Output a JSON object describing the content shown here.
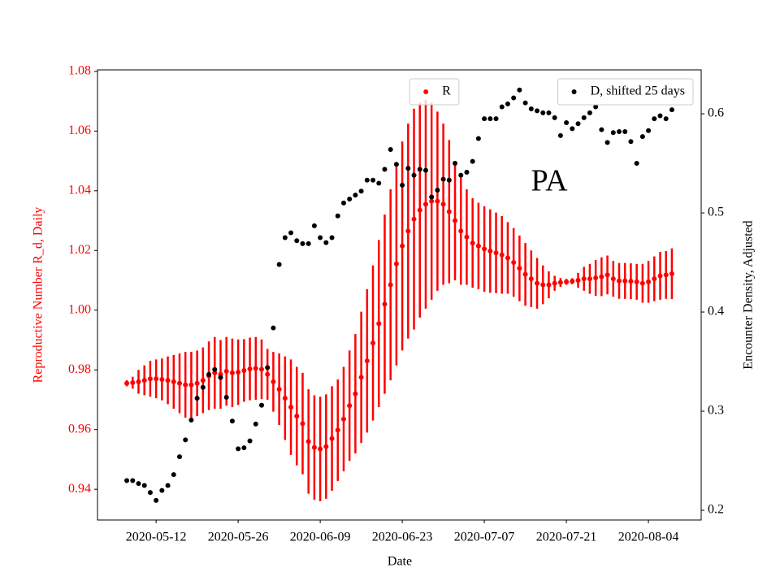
{
  "chart_data": {
    "type": "scatter",
    "x_label": "Date",
    "y_label": "Reproductive Number R_d, Daily",
    "y2_label": "Encounter Density, Adjusted",
    "annotation": "PA",
    "x": [
      "2020-05-07",
      "2020-05-08",
      "2020-05-09",
      "2020-05-10",
      "2020-05-11",
      "2020-05-12",
      "2020-05-13",
      "2020-05-14",
      "2020-05-15",
      "2020-05-16",
      "2020-05-17",
      "2020-05-18",
      "2020-05-19",
      "2020-05-20",
      "2020-05-21",
      "2020-05-22",
      "2020-05-23",
      "2020-05-24",
      "2020-05-25",
      "2020-05-26",
      "2020-05-27",
      "2020-05-28",
      "2020-05-29",
      "2020-05-30",
      "2020-05-31",
      "2020-06-01",
      "2020-06-02",
      "2020-06-03",
      "2020-06-04",
      "2020-06-05",
      "2020-06-06",
      "2020-06-07",
      "2020-06-08",
      "2020-06-09",
      "2020-06-10",
      "2020-06-11",
      "2020-06-12",
      "2020-06-13",
      "2020-06-14",
      "2020-06-15",
      "2020-06-16",
      "2020-06-17",
      "2020-06-18",
      "2020-06-19",
      "2020-06-20",
      "2020-06-21",
      "2020-06-22",
      "2020-06-23",
      "2020-06-24",
      "2020-06-25",
      "2020-06-26",
      "2020-06-27",
      "2020-06-28",
      "2020-06-29",
      "2020-06-30",
      "2020-07-01",
      "2020-07-02",
      "2020-07-03",
      "2020-07-04",
      "2020-07-05",
      "2020-07-06",
      "2020-07-07",
      "2020-07-08",
      "2020-07-09",
      "2020-07-10",
      "2020-07-11",
      "2020-07-12",
      "2020-07-13",
      "2020-07-14",
      "2020-07-15",
      "2020-07-16",
      "2020-07-17",
      "2020-07-18",
      "2020-07-19",
      "2020-07-20",
      "2020-07-21",
      "2020-07-22",
      "2020-07-23",
      "2020-07-24",
      "2020-07-25",
      "2020-07-26",
      "2020-07-27",
      "2020-07-28",
      "2020-07-29",
      "2020-07-30",
      "2020-07-31",
      "2020-08-01",
      "2020-08-02",
      "2020-08-03",
      "2020-08-04",
      "2020-08-05",
      "2020-08-06",
      "2020-08-07",
      "2020-08-08"
    ],
    "series": [
      {
        "name": "R",
        "color": "#ff0000",
        "axis": "y",
        "values": [
          0.9755,
          0.9757,
          0.976,
          0.9765,
          0.977,
          0.977,
          0.9768,
          0.9765,
          0.976,
          0.9755,
          0.975,
          0.975,
          0.9755,
          0.9765,
          0.978,
          0.979,
          0.9785,
          0.9795,
          0.979,
          0.9792,
          0.9798,
          0.9803,
          0.9805,
          0.9802,
          0.9785,
          0.976,
          0.9735,
          0.9705,
          0.9675,
          0.9645,
          0.962,
          0.956,
          0.954,
          0.9535,
          0.9543,
          0.957,
          0.9598,
          0.9635,
          0.968,
          0.972,
          0.9775,
          0.983,
          0.989,
          0.9955,
          1.002,
          1.0085,
          1.0155,
          1.0215,
          1.0265,
          1.0305,
          1.0335,
          1.0355,
          1.0365,
          1.0365,
          1.0355,
          1.033,
          1.03,
          1.0265,
          1.0245,
          1.0225,
          1.0215,
          1.0205,
          1.0198,
          1.0192,
          1.0185,
          1.0175,
          1.016,
          1.014,
          1.012,
          1.0105,
          1.009,
          1.0085,
          1.0085,
          1.009,
          1.0093,
          1.0095,
          1.0097,
          1.01,
          1.0105,
          1.0105,
          1.0108,
          1.0112,
          1.0118,
          1.0105,
          1.0098,
          1.0098,
          1.0097,
          1.0095,
          1.009,
          1.0095,
          1.0105,
          1.0115,
          1.0118,
          1.0122
        ],
        "errors": [
          0.001,
          0.002,
          0.004,
          0.005,
          0.006,
          0.0065,
          0.007,
          0.008,
          0.009,
          0.01,
          0.011,
          0.011,
          0.011,
          0.011,
          0.0115,
          0.012,
          0.0115,
          0.0115,
          0.0115,
          0.011,
          0.0105,
          0.0105,
          0.0105,
          0.01,
          0.0085,
          0.01,
          0.012,
          0.014,
          0.016,
          0.0165,
          0.017,
          0.0175,
          0.0175,
          0.0175,
          0.0175,
          0.0175,
          0.017,
          0.0175,
          0.0185,
          0.02,
          0.022,
          0.024,
          0.026,
          0.028,
          0.03,
          0.032,
          0.034,
          0.035,
          0.036,
          0.037,
          0.036,
          0.035,
          0.033,
          0.03,
          0.027,
          0.024,
          0.02,
          0.018,
          0.016,
          0.015,
          0.0145,
          0.0143,
          0.014,
          0.0135,
          0.013,
          0.012,
          0.0115,
          0.011,
          0.0105,
          0.0095,
          0.0085,
          0.0065,
          0.0045,
          0.0025,
          0.0015,
          0.001,
          0.001,
          0.0025,
          0.004,
          0.005,
          0.006,
          0.0065,
          0.0065,
          0.006,
          0.006,
          0.006,
          0.006,
          0.006,
          0.0065,
          0.007,
          0.0075,
          0.008,
          0.008,
          0.0085
        ],
        "legend": "upper center"
      },
      {
        "name": "D, shifted 25 days",
        "color": "#000000",
        "axis": "y2",
        "values": [
          0.23,
          0.23,
          0.227,
          0.225,
          0.218,
          0.21,
          0.22,
          0.225,
          0.236,
          0.254,
          0.271,
          0.291,
          0.313,
          0.324,
          0.337,
          0.342,
          0.334,
          0.314,
          0.29,
          0.262,
          0.263,
          0.27,
          0.287,
          0.306,
          0.344,
          0.384,
          0.448,
          0.475,
          0.48,
          0.472,
          0.469,
          0.469,
          0.487,
          0.475,
          0.47,
          0.475,
          0.497,
          0.51,
          0.514,
          0.518,
          0.522,
          0.533,
          0.533,
          0.53,
          0.544,
          0.564,
          0.549,
          0.528,
          0.545,
          0.538,
          0.544,
          0.543,
          0.516,
          0.523,
          0.534,
          0.533,
          0.55,
          0.538,
          0.541,
          0.552,
          0.575,
          0.595,
          0.595,
          0.595,
          0.607,
          0.61,
          0.616,
          0.624,
          0.611,
          0.605,
          0.603,
          0.601,
          0.601,
          0.596,
          0.578,
          0.591,
          0.585,
          0.59,
          0.596,
          0.601,
          0.607,
          0.584,
          0.571,
          0.581,
          0.582,
          0.582,
          0.572,
          0.55,
          0.577,
          0.583,
          0.595,
          0.598,
          0.595,
          0.604
        ],
        "legend": "upper right"
      }
    ],
    "xlim": [
      "2020-05-02",
      "2020-08-13"
    ],
    "xticks": [
      "2020-05-12",
      "2020-05-26",
      "2020-06-09",
      "2020-06-23",
      "2020-07-07",
      "2020-07-21",
      "2020-08-04"
    ],
    "ylim": [
      0.9297,
      1.0805
    ],
    "yticks": [
      0.94,
      0.96,
      0.98,
      {
        "value": 1,
        "label": "1.00"
      },
      1.02,
      1.04,
      1.06,
      1.08
    ],
    "y2lim": [
      0.1902,
      0.6443
    ],
    "y2ticks": [
      0.2,
      0.3,
      0.4,
      0.5,
      0.6
    ]
  }
}
